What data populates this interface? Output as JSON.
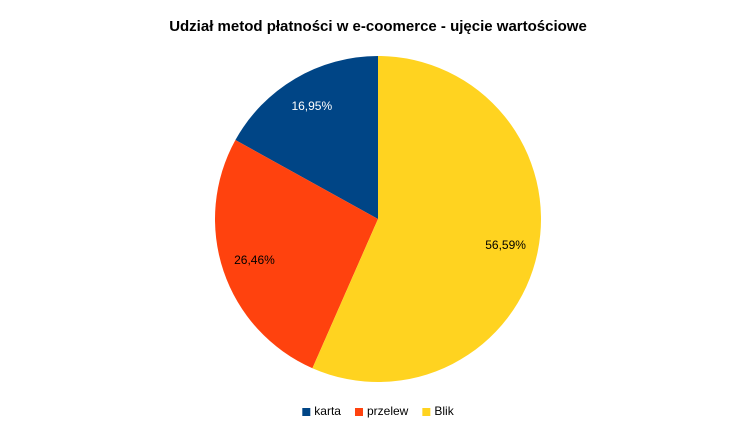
{
  "chart_data": {
    "type": "pie",
    "title": "Udział metod płatności w e-coomerce - ujęcie wartościowe",
    "categories": [
      "karta",
      "przelew",
      "Blik"
    ],
    "values": [
      16.95,
      26.46,
      56.59
    ],
    "value_labels": [
      "16,95%",
      "26,46%",
      "56,59%"
    ],
    "colors": [
      "#004586",
      "#ff420e",
      "#ffd320"
    ],
    "legend": "bottom"
  }
}
